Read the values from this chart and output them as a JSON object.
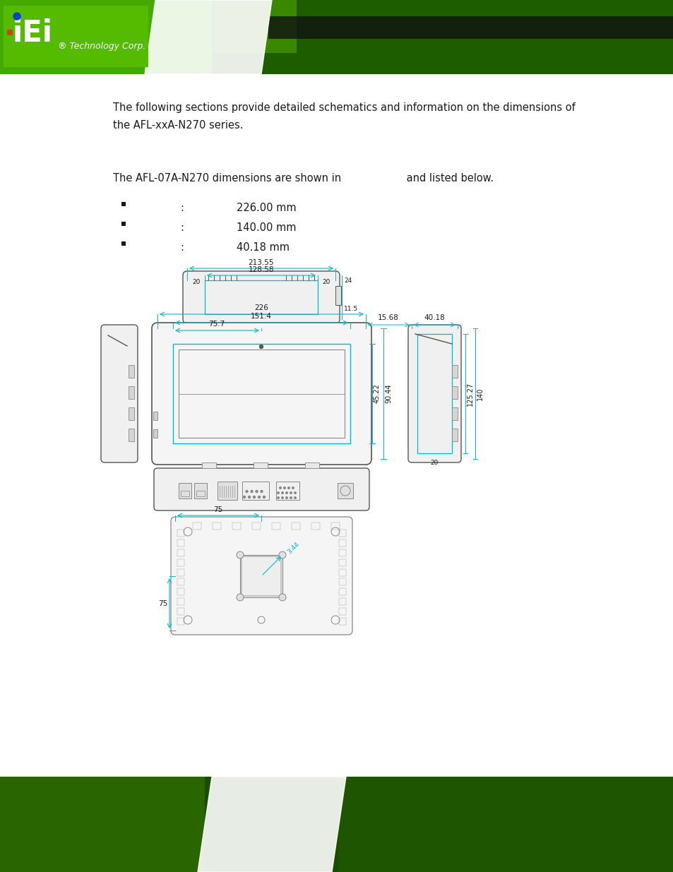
{
  "bg_color": "#ffffff",
  "text_color": "#1a1a1a",
  "cyan_color": "#00bbcc",
  "outline_color": "#888888",
  "dark_outline": "#555555",
  "header_green": "#2d6600",
  "header_light_green": "#4a9900",
  "font_size_body": 10.5,
  "font_size_dim": 7.5,
  "font_size_small": 6.5,
  "intro_line1": "The following sections provide detailed schematics and information on the dimensions of",
  "intro_line2": "the AFL-xxA-N270 series.",
  "section_line": "The AFL-07A-N270 dimensions are shown in                    and listed below.",
  "bullet_values": [
    "226.00 mm",
    "140.00 mm",
    "40.18 mm"
  ],
  "dim_213_55": "213.55",
  "dim_128_58": "128.58",
  "dim_20": "20",
  "dim_24": "24",
  "dim_11_5": "11.5",
  "dim_226": "226",
  "dim_151_4": "151.4",
  "dim_75_7": "75.7",
  "dim_15_68": "15.68",
  "dim_40_18": "40.18",
  "dim_45_22": "45.22",
  "dim_90_44": "90.44",
  "dim_125_27": "125.27",
  "dim_140": "140",
  "dim_20b": "20",
  "dim_75a": "75",
  "dim_75b": "75",
  "dim_3_44": "3.44"
}
